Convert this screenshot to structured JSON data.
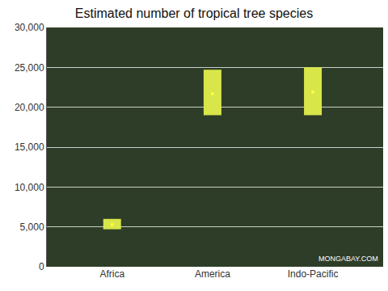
{
  "chart_data": {
    "type": "range_bar",
    "title": "Estimated number of tropical tree species",
    "categories": [
      "Africa",
      "America",
      "Indo-Pacific"
    ],
    "low": [
      4700,
      19000,
      19000
    ],
    "high": [
      6000,
      24700,
      25000
    ],
    "values": [
      5300,
      21700,
      21900
    ],
    "color": "#d8e64a",
    "ylim": [
      0,
      30000
    ],
    "yticks": [
      0,
      {
        "value": 5000,
        "label": "5,000"
      },
      {
        "value": 10000,
        "label": "10,000"
      },
      {
        "value": 15000,
        "label": "15,000"
      },
      {
        "value": 20000,
        "label": "20,000"
      },
      {
        "value": 25000,
        "label": "25,000"
      },
      {
        "value": 30000,
        "label": "30,000"
      }
    ],
    "grid": true,
    "annotations": [
      "MONGABAY.COM"
    ]
  }
}
